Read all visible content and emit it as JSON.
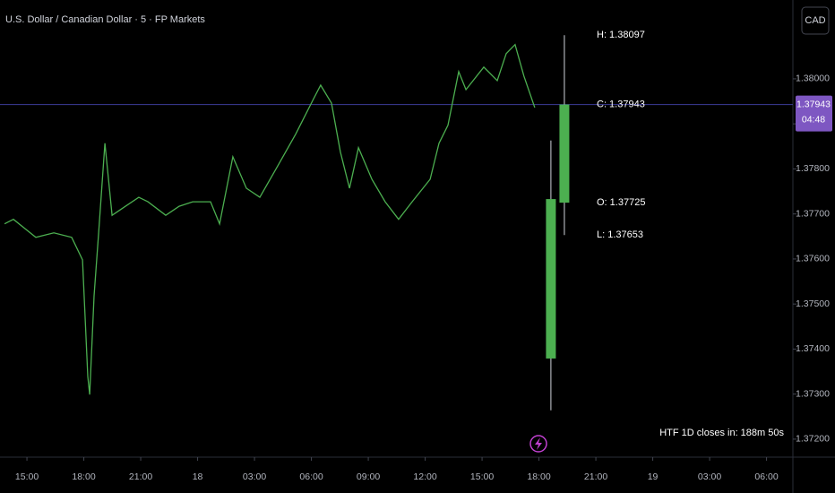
{
  "chart_data": {
    "type": "price",
    "title": "U.S. Dollar / Canadian Dollar · 5 · FP Markets",
    "currency_button": "CAD",
    "countdown_note": "HTF 1D closes in: 188m 50s",
    "color": "#4caf50",
    "x": [
      13.82,
      14.29,
      15.47,
      16.42,
      17.36,
      17.93,
      18.21,
      18.31,
      18.54,
      18.78,
      19.11,
      19.49,
      20.2,
      20.9,
      21.38,
      22.32,
      23.03,
      23.74,
      24.68,
      25.16,
      25.86,
      26.57,
      27.28,
      28.23,
      29.17,
      30.12,
      30.49,
      31.06,
      31.53,
      32.01,
      32.48,
      33.19,
      33.89,
      34.6,
      35.31,
      36.26,
      36.73,
      37.2,
      37.77,
      38.15,
      39.09,
      39.8,
      40.27,
      40.74,
      41.21,
      41.78
    ],
    "values": [
      1.37678,
      1.37688,
      1.37648,
      1.37658,
      1.37648,
      1.37598,
      1.37339,
      1.37299,
      1.37518,
      1.37658,
      1.37857,
      1.37697,
      1.37717,
      1.37737,
      1.37727,
      1.37697,
      1.37717,
      1.37727,
      1.37727,
      1.37678,
      1.37827,
      1.37757,
      1.37737,
      1.37807,
      1.37877,
      1.37956,
      1.37986,
      1.37946,
      1.37837,
      1.37757,
      1.37847,
      1.37777,
      1.37727,
      1.37688,
      1.37727,
      1.37777,
      1.37857,
      1.37897,
      1.38016,
      1.37976,
      1.38026,
      1.37996,
      1.38056,
      1.38076,
      1.38006,
      1.37936
    ],
    "htf_candles": [
      {
        "x": 42.63,
        "open": 1.37379,
        "high": 1.37863,
        "low": 1.37264,
        "close": 1.37733
      },
      {
        "x": 43.34,
        "open": 1.37725,
        "high": 1.38097,
        "low": 1.37653,
        "close": 1.37943
      }
    ],
    "ohlc_labels": {
      "high": "H: 1.38097",
      "close": "C: 1.37943",
      "open": "O: 1.37725",
      "low": "L: 1.37653"
    },
    "current_price": {
      "value": 1.37943,
      "label": "1.37943"
    },
    "bar_countdown": "04:48",
    "xlim": [
      13.58,
      55.39
    ],
    "ylim": [
      1.3716,
      1.38175
    ],
    "xticks": [
      {
        "value": 15,
        "label": "15:00"
      },
      {
        "value": 18,
        "label": "18:00"
      },
      {
        "value": 21,
        "label": "21:00"
      },
      {
        "value": 24,
        "label": "18"
      },
      {
        "value": 27,
        "label": "03:00"
      },
      {
        "value": 30,
        "label": "06:00"
      },
      {
        "value": 33,
        "label": "09:00"
      },
      {
        "value": 36,
        "label": "12:00"
      },
      {
        "value": 39,
        "label": "15:00"
      },
      {
        "value": 42,
        "label": "18:00"
      },
      {
        "value": 45,
        "label": "21:00"
      },
      {
        "value": 48,
        "label": "19"
      },
      {
        "value": 51,
        "label": "03:00"
      },
      {
        "value": 54,
        "label": "06:00"
      }
    ],
    "yticks": [
      {
        "value": 1.38,
        "label": "1.38000"
      },
      {
        "value": 1.379,
        "label": "1.37900"
      },
      {
        "value": 1.378,
        "label": "1.37800"
      },
      {
        "value": 1.377,
        "label": "1.37700"
      },
      {
        "value": 1.376,
        "label": "1.37600"
      },
      {
        "value": 1.375,
        "label": "1.37500"
      },
      {
        "value": 1.374,
        "label": "1.37400"
      },
      {
        "value": 1.373,
        "label": "1.37300"
      },
      {
        "value": 1.372,
        "label": "1.37200"
      }
    ]
  }
}
